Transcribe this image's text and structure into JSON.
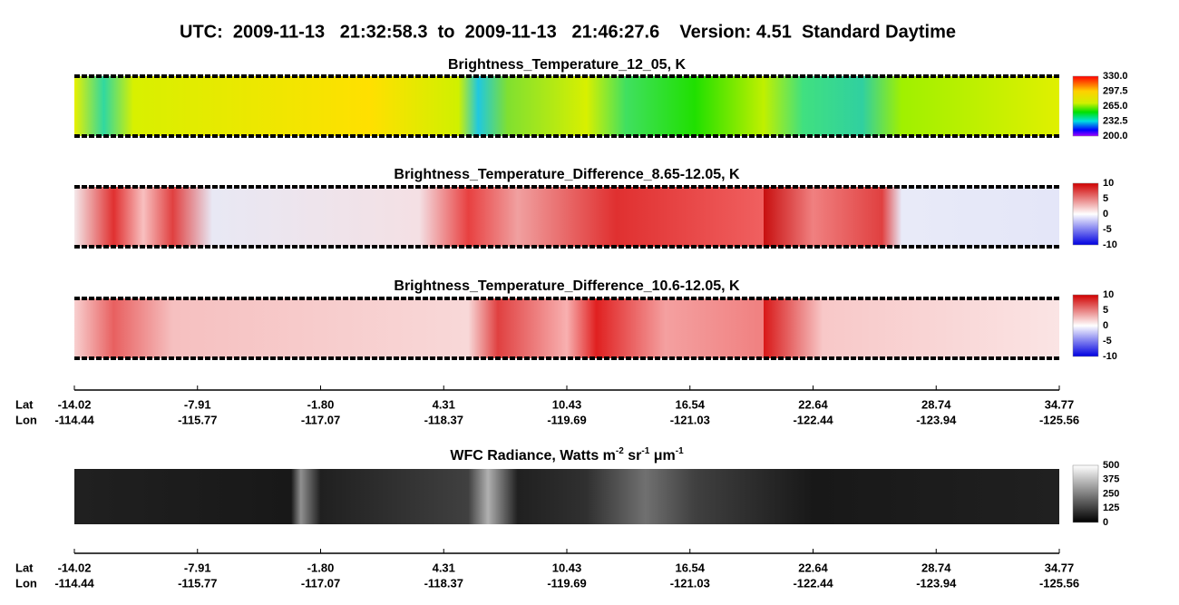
{
  "title": "UTC:  2009-11-13   21:32:58.3  to  2009-11-13   21:46:27.6    Version: 4.51  Standard Daytime",
  "panels": [
    {
      "title": "Brightness_Temperature_12_05, K",
      "colorbar": [
        "330.0",
        "297.5",
        "265.0",
        "232.5",
        "200.0"
      ]
    },
    {
      "title": "Brightness_Temperature_Difference_8.65-12.05, K",
      "colorbar": [
        "10",
        "5",
        "0",
        "-5",
        "-10"
      ]
    },
    {
      "title": "Brightness_Temperature_Difference_10.6-12.05, K",
      "colorbar": [
        "10",
        "5",
        "0",
        "-5",
        "-10"
      ]
    },
    {
      "title_parts": [
        {
          "text": "WFC Radiance, Watts m"
        },
        {
          "text": "-2",
          "sup": true
        },
        {
          "text": " sr"
        },
        {
          "text": "-1",
          "sup": true
        },
        {
          "text": " μm"
        },
        {
          "text": "-1",
          "sup": true
        }
      ],
      "colorbar": [
        "500",
        "375",
        "250",
        "125",
        "0"
      ]
    }
  ],
  "axes": [
    {
      "lat_label": "Lat",
      "lon_label": "Lon",
      "lat": [
        "-14.02",
        "-7.91",
        "-1.80",
        "4.31",
        "10.43",
        "16.54",
        "22.64",
        "28.74",
        "34.77"
      ],
      "lon": [
        "-114.44",
        "-115.77",
        "-117.07",
        "-118.37",
        "-119.69",
        "-121.03",
        "-122.44",
        "-123.94",
        "-125.56"
      ]
    },
    {
      "lat_label": "Lat",
      "lon_label": "Lon",
      "lat": [
        "-14.02",
        "-7.91",
        "-1.80",
        "4.31",
        "10.43",
        "16.54",
        "22.64",
        "28.74",
        "34.77"
      ],
      "lon": [
        "-114.44",
        "-115.77",
        "-117.07",
        "-118.37",
        "-119.69",
        "-121.03",
        "-122.44",
        "-123.94",
        "-125.56"
      ]
    }
  ]
}
